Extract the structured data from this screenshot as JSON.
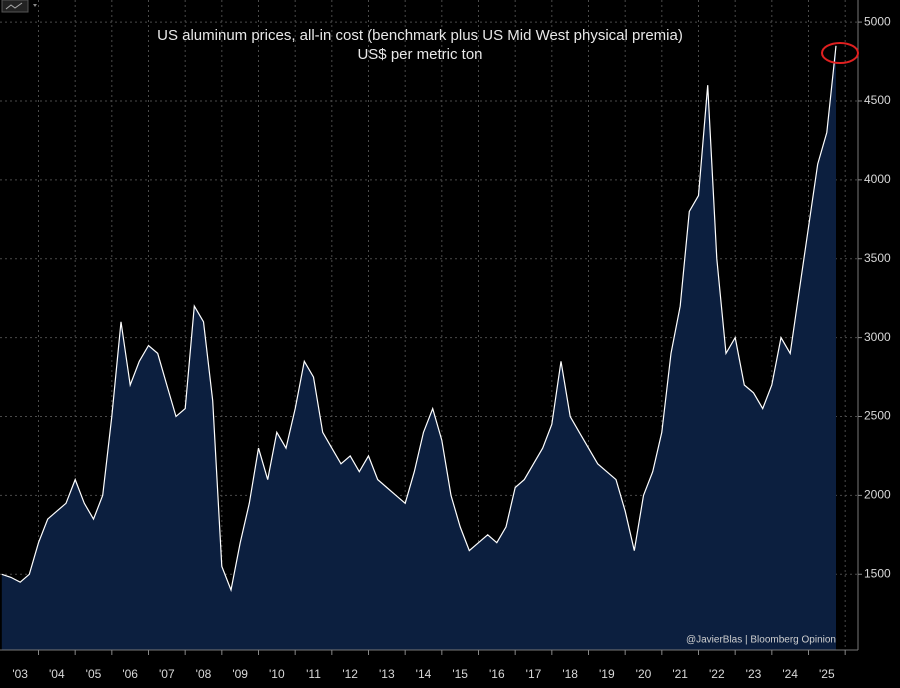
{
  "chart_data": {
    "type": "area",
    "title": "US aluminum prices, all-in cost (benchmark plus US Mid West physical premia)",
    "subtitle": "US$ per metric ton",
    "source": "@JavierBlas | Bloomberg Opinion",
    "x": [
      2003.0,
      2003.25,
      2003.5,
      2003.75,
      2004.0,
      2004.25,
      2004.5,
      2004.75,
      2005.0,
      2005.25,
      2005.5,
      2005.75,
      2006.0,
      2006.25,
      2006.5,
      2006.75,
      2007.0,
      2007.25,
      2007.5,
      2007.75,
      2008.0,
      2008.25,
      2008.5,
      2008.75,
      2009.0,
      2009.25,
      2009.5,
      2009.75,
      2010.0,
      2010.25,
      2010.5,
      2010.75,
      2011.0,
      2011.25,
      2011.5,
      2011.75,
      2012.0,
      2012.25,
      2012.5,
      2012.75,
      2013.0,
      2013.25,
      2013.5,
      2013.75,
      2014.0,
      2014.25,
      2014.5,
      2014.75,
      2015.0,
      2015.25,
      2015.5,
      2015.75,
      2016.0,
      2016.25,
      2016.5,
      2016.75,
      2017.0,
      2017.25,
      2017.5,
      2017.75,
      2018.0,
      2018.25,
      2018.5,
      2018.75,
      2019.0,
      2019.25,
      2019.5,
      2019.75,
      2020.0,
      2020.25,
      2020.5,
      2020.75,
      2021.0,
      2021.25,
      2021.5,
      2021.75,
      2022.0,
      2022.25,
      2022.5,
      2022.75,
      2023.0,
      2023.25,
      2023.5,
      2023.75,
      2024.0,
      2024.25,
      2024.5,
      2024.75,
      2025.0,
      2025.25,
      2025.5,
      2025.75
    ],
    "series": [
      {
        "name": "US aluminum all-in cost",
        "color": "#ffffff",
        "fill": "#0c1f3f",
        "values": [
          1500,
          1480,
          1450,
          1500,
          1700,
          1850,
          1900,
          1950,
          2100,
          1950,
          1850,
          2000,
          2500,
          3100,
          2700,
          2850,
          2950,
          2900,
          2700,
          2500,
          2550,
          3200,
          3100,
          2600,
          1550,
          1400,
          1700,
          1950,
          2300,
          2100,
          2400,
          2300,
          2550,
          2850,
          2750,
          2400,
          2300,
          2200,
          2250,
          2150,
          2250,
          2100,
          2050,
          2000,
          1950,
          2150,
          2400,
          2550,
          2350,
          2000,
          1800,
          1650,
          1700,
          1750,
          1700,
          1800,
          2050,
          2100,
          2200,
          2300,
          2450,
          2850,
          2500,
          2400,
          2300,
          2200,
          2150,
          2100,
          1900,
          1650,
          2000,
          2150,
          2400,
          2900,
          3200,
          3800,
          3900,
          4600,
          3500,
          2900,
          3000,
          2700,
          2650,
          2550,
          2700,
          3000,
          2900,
          3300,
          3700,
          4100,
          4300,
          4850
        ]
      }
    ],
    "xlim": [
      2002.95,
      2026.35
    ],
    "ylim": [
      1020,
      5140
    ],
    "yticks": [
      1500,
      2000,
      2500,
      3000,
      3500,
      4000,
      4500,
      5000
    ],
    "xticks": [
      {
        "value": 2003.5,
        "label": "'03"
      },
      {
        "value": 2004.5,
        "label": "'04"
      },
      {
        "value": 2005.5,
        "label": "'05"
      },
      {
        "value": 2006.5,
        "label": "'06"
      },
      {
        "value": 2007.5,
        "label": "'07"
      },
      {
        "value": 2008.5,
        "label": "'08"
      },
      {
        "value": 2009.5,
        "label": "'09"
      },
      {
        "value": 2010.5,
        "label": "'10"
      },
      {
        "value": 2011.5,
        "label": "'11"
      },
      {
        "value": 2012.5,
        "label": "'12"
      },
      {
        "value": 2013.5,
        "label": "'13"
      },
      {
        "value": 2014.5,
        "label": "'14"
      },
      {
        "value": 2015.5,
        "label": "'15"
      },
      {
        "value": 2016.5,
        "label": "'16"
      },
      {
        "value": 2017.5,
        "label": "'17"
      },
      {
        "value": 2018.5,
        "label": "'18"
      },
      {
        "value": 2019.5,
        "label": "'19"
      },
      {
        "value": 2020.5,
        "label": "'20"
      },
      {
        "value": 2021.5,
        "label": "'21"
      },
      {
        "value": 2022.5,
        "label": "'22"
      },
      {
        "value": 2023.5,
        "label": "'23"
      },
      {
        "value": 2024.5,
        "label": "'24"
      },
      {
        "value": 2025.5,
        "label": "'25"
      }
    ],
    "grid": true
  }
}
